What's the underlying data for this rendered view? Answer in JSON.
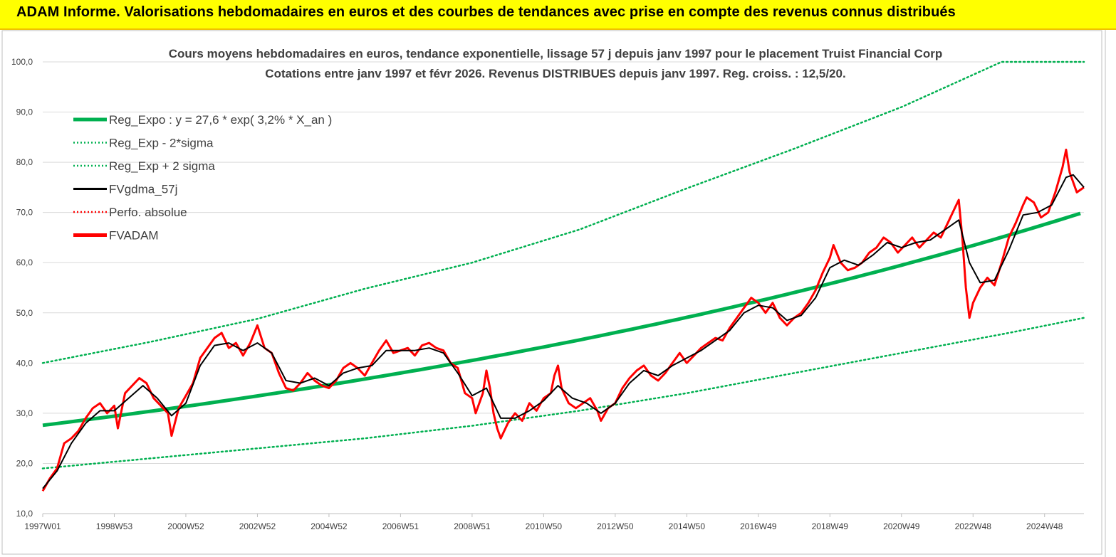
{
  "banner": {
    "title": "ADAM Informe. Valorisations hebdomadaires en euros et des courbes de tendances avec prise en compte des revenus connus distribués"
  },
  "chart_data": {
    "type": "line",
    "title_line1": "Cours moyens hebdomadaires en euros, tendance exponentielle, lissage 57 j depuis janv 1997 pour le placement Truist Financial Corp",
    "title_line2": "Cotations entre janv 1997 et févr 2026. Revenus DISTRIBUES depuis janv 1997. Reg. croiss. : 12,5/20.",
    "x_range": [
      1997.0,
      2026.1
    ],
    "ylim": [
      10,
      100
    ],
    "y_ticks": [
      "10,0",
      "20,0",
      "30,0",
      "40,0",
      "50,0",
      "60,0",
      "70,0",
      "80,0",
      "90,0",
      "100,0"
    ],
    "x_ticks": [
      {
        "label": "1997W01",
        "x": 1997.0
      },
      {
        "label": "1998W53",
        "x": 1999.0
      },
      {
        "label": "2000W52",
        "x": 2001.0
      },
      {
        "label": "2002W52",
        "x": 2003.0
      },
      {
        "label": "2004W52",
        "x": 2005.0
      },
      {
        "label": "2006W51",
        "x": 2007.0
      },
      {
        "label": "2008W51",
        "x": 2009.0
      },
      {
        "label": "2010W50",
        "x": 2011.0
      },
      {
        "label": "2012W50",
        "x": 2013.0
      },
      {
        "label": "2014W50",
        "x": 2015.0
      },
      {
        "label": "2016W49",
        "x": 2017.0
      },
      {
        "label": "2018W49",
        "x": 2019.0
      },
      {
        "label": "2020W49",
        "x": 2021.0
      },
      {
        "label": "2022W48",
        "x": 2023.0
      },
      {
        "label": "2024W48",
        "x": 2025.0
      }
    ],
    "grid": "horizontal",
    "legend_position": "top-left",
    "legend": [
      {
        "label": "Reg_Expo : y = 27,6 * exp( 3,2% *  X_an )",
        "color": "#00b050",
        "style": "solid-thick"
      },
      {
        "label": "Reg_Exp - 2*sigma",
        "color": "#00b050",
        "style": "dotted"
      },
      {
        "label": "Reg_Exp + 2 sigma",
        "color": "#00b050",
        "style": "dotted"
      },
      {
        "label": "FVgdma_57j",
        "color": "#000000",
        "style": "solid"
      },
      {
        "label": "Perfo. absolue",
        "color": "#ff0000",
        "style": "dotted"
      },
      {
        "label": "FVADAM",
        "color": "#ff0000",
        "style": "solid-thick"
      }
    ],
    "regression": {
      "a": 27.6,
      "rate": 0.032,
      "x0": 1997.0,
      "x_end": 2026.1
    },
    "upper_band": [
      [
        1997.0,
        40.0
      ],
      [
        2000.0,
        44.2
      ],
      [
        2003.0,
        48.8
      ],
      [
        2006.0,
        54.8
      ],
      [
        2009.0,
        60.0
      ],
      [
        2012.0,
        66.6
      ],
      [
        2015.0,
        74.8
      ],
      [
        2018.0,
        82.7
      ],
      [
        2021.0,
        91.0
      ],
      [
        2023.8,
        100.0
      ],
      [
        2026.1,
        100.0
      ]
    ],
    "lower_band": [
      [
        1997.0,
        19.0
      ],
      [
        2000.0,
        21.0
      ],
      [
        2003.0,
        23.0
      ],
      [
        2006.0,
        25.0
      ],
      [
        2009.0,
        27.5
      ],
      [
        2012.0,
        30.5
      ],
      [
        2015.0,
        34.0
      ],
      [
        2018.0,
        38.0
      ],
      [
        2021.0,
        42.0
      ],
      [
        2024.0,
        46.0
      ],
      [
        2026.1,
        49.0
      ]
    ],
    "series": [
      {
        "name": "FVADAM",
        "color": "#ff0000",
        "values": [
          [
            1997.0,
            14.5
          ],
          [
            1997.2,
            17.0
          ],
          [
            1997.4,
            19.0
          ],
          [
            1997.6,
            24.0
          ],
          [
            1997.8,
            25.0
          ],
          [
            1998.0,
            26.5
          ],
          [
            1998.2,
            29.0
          ],
          [
            1998.4,
            31.0
          ],
          [
            1998.6,
            32.0
          ],
          [
            1998.8,
            30.0
          ],
          [
            1999.0,
            31.5
          ],
          [
            1999.1,
            27.0
          ],
          [
            1999.3,
            34.0
          ],
          [
            1999.5,
            35.5
          ],
          [
            1999.7,
            37.0
          ],
          [
            1999.9,
            36.0
          ],
          [
            2000.1,
            33.0
          ],
          [
            2000.3,
            31.5
          ],
          [
            2000.5,
            30.0
          ],
          [
            2000.6,
            25.5
          ],
          [
            2000.8,
            31.0
          ],
          [
            2001.0,
            33.5
          ],
          [
            2001.2,
            36.0
          ],
          [
            2001.4,
            41.0
          ],
          [
            2001.6,
            43.0
          ],
          [
            2001.8,
            45.0
          ],
          [
            2002.0,
            46.0
          ],
          [
            2002.2,
            43.0
          ],
          [
            2002.4,
            44.0
          ],
          [
            2002.6,
            41.5
          ],
          [
            2002.8,
            44.0
          ],
          [
            2003.0,
            47.5
          ],
          [
            2003.2,
            43.0
          ],
          [
            2003.4,
            42.0
          ],
          [
            2003.6,
            38.0
          ],
          [
            2003.8,
            35.0
          ],
          [
            2004.0,
            34.5
          ],
          [
            2004.2,
            36.0
          ],
          [
            2004.4,
            38.0
          ],
          [
            2004.6,
            36.5
          ],
          [
            2004.8,
            35.5
          ],
          [
            2005.0,
            35.0
          ],
          [
            2005.2,
            36.5
          ],
          [
            2005.4,
            39.0
          ],
          [
            2005.6,
            40.0
          ],
          [
            2005.8,
            39.0
          ],
          [
            2006.0,
            37.5
          ],
          [
            2006.2,
            40.0
          ],
          [
            2006.4,
            42.5
          ],
          [
            2006.6,
            44.5
          ],
          [
            2006.8,
            42.0
          ],
          [
            2007.0,
            42.5
          ],
          [
            2007.2,
            43.0
          ],
          [
            2007.4,
            41.5
          ],
          [
            2007.6,
            43.5
          ],
          [
            2007.8,
            44.0
          ],
          [
            2008.0,
            43.0
          ],
          [
            2008.2,
            42.5
          ],
          [
            2008.4,
            40.0
          ],
          [
            2008.6,
            39.0
          ],
          [
            2008.8,
            34.0
          ],
          [
            2009.0,
            33.0
          ],
          [
            2009.1,
            30.0
          ],
          [
            2009.3,
            34.0
          ],
          [
            2009.4,
            38.5
          ],
          [
            2009.5,
            35.0
          ],
          [
            2009.6,
            30.0
          ],
          [
            2009.7,
            27.0
          ],
          [
            2009.8,
            25.0
          ],
          [
            2010.0,
            28.0
          ],
          [
            2010.2,
            30.0
          ],
          [
            2010.4,
            28.5
          ],
          [
            2010.6,
            32.0
          ],
          [
            2010.8,
            30.5
          ],
          [
            2011.0,
            33.0
          ],
          [
            2011.2,
            34.0
          ],
          [
            2011.3,
            37.5
          ],
          [
            2011.4,
            39.5
          ],
          [
            2011.5,
            35.0
          ],
          [
            2011.7,
            32.0
          ],
          [
            2011.9,
            31.0
          ],
          [
            2012.1,
            32.0
          ],
          [
            2012.3,
            33.0
          ],
          [
            2012.5,
            30.5
          ],
          [
            2012.6,
            28.5
          ],
          [
            2012.8,
            31.0
          ],
          [
            2013.0,
            32.0
          ],
          [
            2013.2,
            35.0
          ],
          [
            2013.4,
            37.0
          ],
          [
            2013.6,
            38.5
          ],
          [
            2013.8,
            39.5
          ],
          [
            2014.0,
            37.5
          ],
          [
            2014.2,
            36.5
          ],
          [
            2014.4,
            38.0
          ],
          [
            2014.6,
            40.0
          ],
          [
            2014.8,
            42.0
          ],
          [
            2015.0,
            40.0
          ],
          [
            2015.2,
            41.5
          ],
          [
            2015.4,
            43.0
          ],
          [
            2015.6,
            44.0
          ],
          [
            2015.8,
            45.0
          ],
          [
            2016.0,
            44.5
          ],
          [
            2016.2,
            47.0
          ],
          [
            2016.4,
            49.0
          ],
          [
            2016.6,
            51.0
          ],
          [
            2016.8,
            53.0
          ],
          [
            2017.0,
            52.0
          ],
          [
            2017.2,
            50.0
          ],
          [
            2017.4,
            52.0
          ],
          [
            2017.6,
            49.0
          ],
          [
            2017.8,
            47.5
          ],
          [
            2018.0,
            49.0
          ],
          [
            2018.2,
            50.0
          ],
          [
            2018.4,
            52.0
          ],
          [
            2018.6,
            54.5
          ],
          [
            2018.8,
            58.0
          ],
          [
            2019.0,
            61.0
          ],
          [
            2019.1,
            63.5
          ],
          [
            2019.3,
            60.0
          ],
          [
            2019.5,
            58.5
          ],
          [
            2019.7,
            59.0
          ],
          [
            2019.9,
            60.0
          ],
          [
            2020.1,
            62.0
          ],
          [
            2020.3,
            63.0
          ],
          [
            2020.5,
            65.0
          ],
          [
            2020.7,
            64.0
          ],
          [
            2020.9,
            62.0
          ],
          [
            2021.1,
            63.5
          ],
          [
            2021.3,
            65.0
          ],
          [
            2021.5,
            63.0
          ],
          [
            2021.7,
            64.5
          ],
          [
            2021.9,
            66.0
          ],
          [
            2022.1,
            65.0
          ],
          [
            2022.3,
            68.0
          ],
          [
            2022.5,
            71.0
          ],
          [
            2022.6,
            72.5
          ],
          [
            2022.7,
            65.0
          ],
          [
            2022.8,
            55.0
          ],
          [
            2022.9,
            49.0
          ],
          [
            2023.0,
            52.0
          ],
          [
            2023.2,
            55.0
          ],
          [
            2023.4,
            57.0
          ],
          [
            2023.6,
            55.5
          ],
          [
            2023.8,
            60.0
          ],
          [
            2024.0,
            65.0
          ],
          [
            2024.2,
            68.0
          ],
          [
            2024.4,
            71.5
          ],
          [
            2024.5,
            73.0
          ],
          [
            2024.7,
            72.0
          ],
          [
            2024.9,
            69.0
          ],
          [
            2025.1,
            70.0
          ],
          [
            2025.3,
            74.0
          ],
          [
            2025.5,
            79.0
          ],
          [
            2025.6,
            82.5
          ],
          [
            2025.7,
            78.0
          ],
          [
            2025.9,
            74.0
          ],
          [
            2026.1,
            75.0
          ]
        ]
      },
      {
        "name": "FVgdma_57j",
        "color": "#000000",
        "values": [
          [
            1997.0,
            15.0
          ],
          [
            1997.4,
            18.5
          ],
          [
            1997.8,
            24.0
          ],
          [
            1998.2,
            28.0
          ],
          [
            1998.6,
            30.5
          ],
          [
            1999.0,
            30.5
          ],
          [
            1999.4,
            33.0
          ],
          [
            1999.8,
            35.5
          ],
          [
            2000.2,
            33.0
          ],
          [
            2000.6,
            29.5
          ],
          [
            2001.0,
            32.0
          ],
          [
            2001.4,
            39.5
          ],
          [
            2001.8,
            43.5
          ],
          [
            2002.2,
            44.0
          ],
          [
            2002.6,
            42.5
          ],
          [
            2003.0,
            44.0
          ],
          [
            2003.4,
            42.0
          ],
          [
            2003.8,
            36.5
          ],
          [
            2004.2,
            36.0
          ],
          [
            2004.6,
            37.0
          ],
          [
            2005.0,
            35.5
          ],
          [
            2005.4,
            38.0
          ],
          [
            2005.8,
            39.0
          ],
          [
            2006.2,
            39.5
          ],
          [
            2006.6,
            42.5
          ],
          [
            2007.0,
            42.5
          ],
          [
            2007.4,
            42.5
          ],
          [
            2007.8,
            43.0
          ],
          [
            2008.2,
            42.0
          ],
          [
            2008.6,
            38.0
          ],
          [
            2009.0,
            33.5
          ],
          [
            2009.4,
            35.0
          ],
          [
            2009.8,
            29.0
          ],
          [
            2010.2,
            29.0
          ],
          [
            2010.6,
            30.5
          ],
          [
            2011.0,
            32.5
          ],
          [
            2011.4,
            35.5
          ],
          [
            2011.8,
            33.0
          ],
          [
            2012.2,
            32.0
          ],
          [
            2012.6,
            30.0
          ],
          [
            2013.0,
            32.0
          ],
          [
            2013.4,
            36.0
          ],
          [
            2013.8,
            38.5
          ],
          [
            2014.2,
            37.5
          ],
          [
            2014.6,
            39.5
          ],
          [
            2015.0,
            41.0
          ],
          [
            2015.4,
            42.5
          ],
          [
            2015.8,
            44.5
          ],
          [
            2016.2,
            46.5
          ],
          [
            2016.6,
            50.0
          ],
          [
            2017.0,
            51.5
          ],
          [
            2017.4,
            51.0
          ],
          [
            2017.8,
            48.5
          ],
          [
            2018.2,
            49.5
          ],
          [
            2018.6,
            53.0
          ],
          [
            2019.0,
            59.0
          ],
          [
            2019.4,
            60.5
          ],
          [
            2019.8,
            59.5
          ],
          [
            2020.2,
            61.5
          ],
          [
            2020.6,
            64.0
          ],
          [
            2021.0,
            63.0
          ],
          [
            2021.4,
            64.0
          ],
          [
            2021.8,
            64.5
          ],
          [
            2022.2,
            66.5
          ],
          [
            2022.6,
            68.5
          ],
          [
            2022.9,
            60.0
          ],
          [
            2023.2,
            56.0
          ],
          [
            2023.6,
            56.5
          ],
          [
            2024.0,
            62.5
          ],
          [
            2024.4,
            69.5
          ],
          [
            2024.8,
            70.0
          ],
          [
            2025.2,
            71.5
          ],
          [
            2025.6,
            77.0
          ],
          [
            2025.8,
            77.5
          ],
          [
            2026.1,
            75.0
          ]
        ]
      }
    ]
  }
}
